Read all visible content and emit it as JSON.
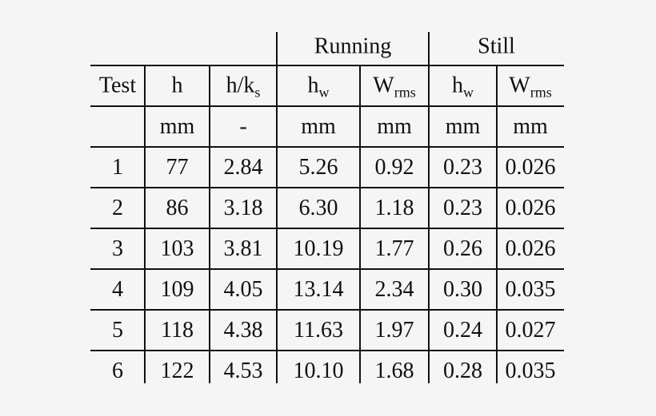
{
  "header": {
    "groups": [
      "Running",
      "Still"
    ]
  },
  "table": {
    "columns": [
      {
        "text": "Test"
      },
      {
        "text": "h"
      },
      {
        "text": "h/k",
        "sub": "s"
      },
      {
        "text": "h",
        "sub": "w"
      },
      {
        "text": "W",
        "sub": "rms"
      },
      {
        "text": "h",
        "sub": "w"
      },
      {
        "text": "W",
        "sub": "rms"
      }
    ],
    "units": [
      "mm",
      "-",
      "mm",
      "mm",
      "mm",
      "mm"
    ],
    "rows": [
      [
        "1",
        "77",
        "2.84",
        "5.26",
        "0.92",
        "0.23",
        "0.026"
      ],
      [
        "2",
        "86",
        "3.18",
        "6.30",
        "1.18",
        "0.23",
        "0.026"
      ],
      [
        "3",
        "103",
        "3.81",
        "10.19",
        "1.77",
        "0.26",
        "0.026"
      ],
      [
        "4",
        "109",
        "4.05",
        "13.14",
        "2.34",
        "0.30",
        "0.035"
      ],
      [
        "5",
        "118",
        "4.38",
        "11.63",
        "1.97",
        "0.24",
        "0.027"
      ],
      [
        "6",
        "122",
        "4.53",
        "10.10",
        "1.68",
        "0.28",
        "0.035"
      ]
    ]
  }
}
